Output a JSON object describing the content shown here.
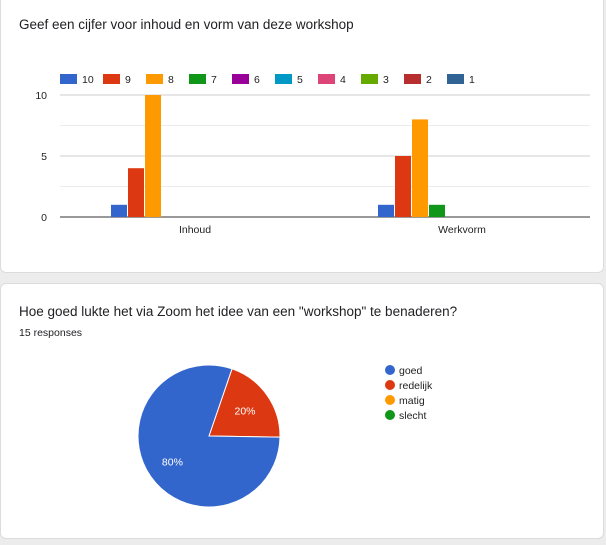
{
  "card1": {
    "title": "Geef een cijfer voor inhoud en vorm van deze workshop"
  },
  "card2": {
    "title": "Hoe goed lukte het via Zoom het idee van een \"workshop\" te benaderen?",
    "responses": "15 responses"
  },
  "chart_data": [
    {
      "type": "bar",
      "title": "Geef een cijfer voor inhoud en vorm van deze workshop",
      "categories": [
        "Inhoud",
        "Werkvorm"
      ],
      "ylim": [
        0,
        10
      ],
      "yticks": [
        "0",
        "5",
        "10"
      ],
      "grid": true,
      "legend_position": "top",
      "series": [
        {
          "name": "10",
          "color": "#3366cc",
          "values": [
            1,
            1
          ]
        },
        {
          "name": "9",
          "color": "#dc3912",
          "values": [
            4,
            5
          ]
        },
        {
          "name": "8",
          "color": "#ff9900",
          "values": [
            10,
            8
          ]
        },
        {
          "name": "7",
          "color": "#109618",
          "values": [
            0,
            1
          ]
        },
        {
          "name": "6",
          "color": "#990099",
          "values": [
            0,
            0
          ]
        },
        {
          "name": "5",
          "color": "#0099c6",
          "values": [
            0,
            0
          ]
        },
        {
          "name": "4",
          "color": "#dd4477",
          "values": [
            0,
            0
          ]
        },
        {
          "name": "3",
          "color": "#66aa00",
          "values": [
            0,
            0
          ]
        },
        {
          "name": "2",
          "color": "#b82e2e",
          "values": [
            0,
            0
          ]
        },
        {
          "name": "1",
          "color": "#316395",
          "values": [
            0,
            0
          ]
        }
      ]
    },
    {
      "type": "pie",
      "title": "Hoe goed lukte het via Zoom het idee van een \"workshop\" te benaderen?",
      "legend_position": "right",
      "slices": [
        {
          "label": "goed",
          "value": 80,
          "display": "80%",
          "color": "#3366cc"
        },
        {
          "label": "redelijk",
          "value": 20,
          "display": "20%",
          "color": "#dc3912"
        },
        {
          "label": "matig",
          "value": 0,
          "display": "",
          "color": "#ff9900"
        },
        {
          "label": "slecht",
          "value": 0,
          "display": "",
          "color": "#109618"
        }
      ]
    }
  ]
}
